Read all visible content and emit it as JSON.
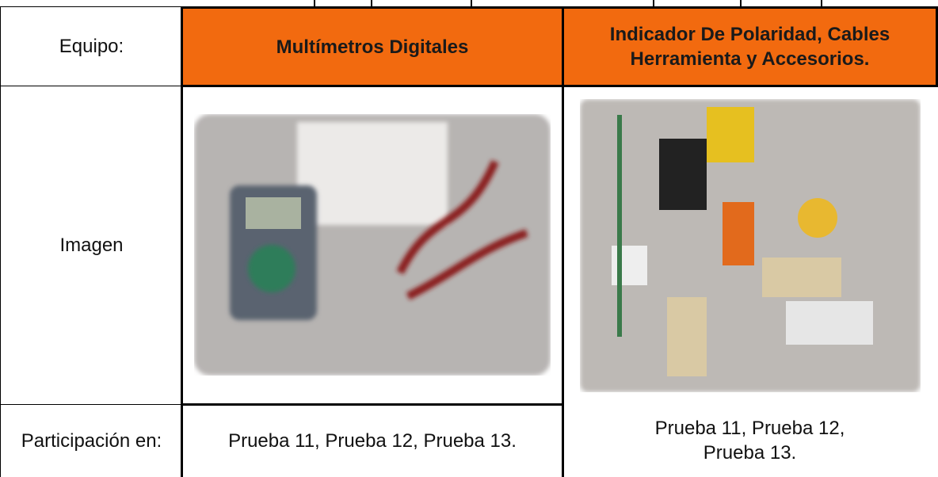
{
  "table": {
    "header": [
      "Equipo:",
      "Multímetros Digitales",
      "Indicador De Polaridad, Cables Herramienta y Accesorios."
    ],
    "rows": [
      [
        "Imagen"
      ],
      [
        "Participación en:",
        "Prueba 11, Prueba 12, Prueba 13.",
        "Prueba 11, Prueba 12, Prueba 13."
      ]
    ]
  }
}
